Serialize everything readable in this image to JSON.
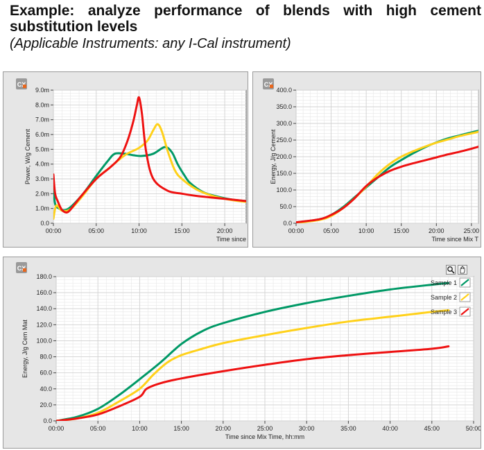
{
  "heading": {
    "title": "Example: analyze performance of blends with high cement substitution levels",
    "subtitle": "(Applicable Instruments: any I-Cal instrument)"
  },
  "colors": {
    "sample1": "#009966",
    "sample2": "#ffd11a",
    "sample3": "#ee1111",
    "panel_bg": "#e6e6e6",
    "plot_bg": "#ffffff",
    "grid": "#d2d2d2"
  },
  "chart_data": [
    {
      "type": "line",
      "title": "",
      "xlabel": "Time since",
      "ylabel": "Power, W/g Cement",
      "xlim": [
        0,
        1350
      ],
      "ylim": [
        0,
        9.0
      ],
      "xticks": [
        0,
        300,
        600,
        900,
        1200
      ],
      "xtick_labels": [
        "00:00",
        "05:00",
        "10:00",
        "15:00",
        "20:00"
      ],
      "yticks": [
        0,
        1,
        2,
        3,
        4,
        5,
        6,
        7,
        8,
        9
      ],
      "ytick_labels": [
        "0.0",
        "1.0m",
        "2.0m",
        "3.0m",
        "4.0m",
        "5.0m",
        "6.0m",
        "7.0m",
        "8.0m",
        "9.0m"
      ],
      "grid": true,
      "series": [
        {
          "color": "#009966",
          "x": [
            0,
            10,
            40,
            100,
            200,
            300,
            380,
            430,
            500,
            560,
            620,
            700,
            780,
            830,
            870,
            920,
            960,
            1050,
            1150,
            1250,
            1350
          ],
          "y": [
            3.0,
            1.4,
            1.0,
            0.95,
            1.9,
            3.2,
            4.2,
            4.7,
            4.7,
            4.6,
            4.55,
            4.7,
            5.15,
            4.8,
            4.0,
            3.2,
            2.7,
            2.1,
            1.8,
            1.6,
            1.5
          ]
        },
        {
          "color": "#ffd11a",
          "x": [
            0,
            20,
            60,
            120,
            200,
            300,
            400,
            500,
            600,
            660,
            700,
            730,
            760,
            800,
            850,
            900,
            1000,
            1100,
            1200,
            1300,
            1350
          ],
          "y": [
            0.3,
            1.2,
            0.85,
            0.95,
            1.8,
            3.0,
            3.8,
            4.6,
            5.1,
            5.6,
            6.3,
            6.7,
            6.2,
            4.9,
            3.6,
            3.0,
            2.3,
            1.9,
            1.65,
            1.5,
            1.45
          ]
        },
        {
          "color": "#ee1111",
          "x": [
            0,
            12,
            30,
            60,
            100,
            150,
            200,
            300,
            400,
            470,
            520,
            560,
            585,
            600,
            620,
            650,
            700,
            800,
            900,
            1000,
            1100,
            1200,
            1300,
            1350
          ],
          "y": [
            3.3,
            2.0,
            1.5,
            0.9,
            0.75,
            1.3,
            1.9,
            3.0,
            3.8,
            4.5,
            5.6,
            6.9,
            8.0,
            8.5,
            7.4,
            4.8,
            3.0,
            2.2,
            2.0,
            1.85,
            1.75,
            1.65,
            1.55,
            1.5
          ]
        }
      ]
    },
    {
      "type": "line",
      "title": "",
      "xlabel": "Time since Mix T",
      "ylabel": "Energy, J/g Cement",
      "xlim": [
        0,
        1560
      ],
      "ylim": [
        0,
        400
      ],
      "xticks": [
        0,
        300,
        600,
        900,
        1200,
        1500
      ],
      "xtick_labels": [
        "00:00",
        "05:00",
        "10:00",
        "15:00",
        "20:00",
        "25:00"
      ],
      "yticks": [
        0,
        50,
        100,
        150,
        200,
        250,
        300,
        350,
        400
      ],
      "ytick_labels": [
        "0.0",
        "50.0",
        "100.0",
        "150.0",
        "200.0",
        "250.0",
        "300.0",
        "350.0",
        "400.0"
      ],
      "grid": true,
      "series": [
        {
          "color": "#009966",
          "x": [
            0,
            200,
            300,
            400,
            500,
            600,
            700,
            800,
            900,
            1000,
            1100,
            1200,
            1300,
            1400,
            1500,
            1560
          ],
          "y": [
            2,
            12,
            25,
            48,
            78,
            108,
            138,
            168,
            190,
            210,
            228,
            243,
            255,
            264,
            273,
            278
          ]
        },
        {
          "color": "#ffd11a",
          "x": [
            0,
            200,
            300,
            400,
            500,
            600,
            700,
            800,
            900,
            1000,
            1100,
            1200,
            1300,
            1400,
            1500,
            1560
          ],
          "y": [
            1,
            10,
            22,
            45,
            75,
            110,
            148,
            178,
            200,
            216,
            230,
            242,
            252,
            262,
            270,
            275
          ]
        },
        {
          "color": "#ee1111",
          "x": [
            0,
            200,
            300,
            400,
            500,
            600,
            700,
            800,
            900,
            1000,
            1100,
            1200,
            1300,
            1400,
            1500,
            1560
          ],
          "y": [
            3,
            12,
            25,
            45,
            75,
            112,
            138,
            157,
            170,
            180,
            189,
            198,
            207,
            215,
            224,
            230
          ]
        }
      ]
    },
    {
      "type": "line",
      "title": "",
      "xlabel": "Time since Mix Time, hh:mm",
      "ylabel": "Energy, J/g Cem Mat",
      "xlim": [
        0,
        3000
      ],
      "ylim": [
        0,
        180
      ],
      "xticks": [
        0,
        300,
        600,
        900,
        1200,
        1500,
        1800,
        2100,
        2400,
        2700,
        3000
      ],
      "xtick_labels": [
        "00:00",
        "05:00",
        "10:00",
        "15:00",
        "20:00",
        "25:00",
        "30:00",
        "35:00",
        "40:00",
        "45:00",
        "50:00"
      ],
      "yticks": [
        0,
        20,
        40,
        60,
        80,
        100,
        120,
        140,
        160,
        180
      ],
      "ytick_labels": [
        "0.0",
        "20.0",
        "40.0",
        "60.0",
        "80.0",
        "100.0",
        "120.0",
        "140.0",
        "160.0",
        "180.0"
      ],
      "grid": true,
      "legend": {
        "placement": "top-right",
        "entries": [
          "Sample 1",
          "Sample 2",
          "Sample 3"
        ]
      },
      "series": [
        {
          "name": "Sample 1",
          "color": "#009966",
          "x": [
            0,
            150,
            300,
            450,
            600,
            750,
            900,
            1050,
            1200,
            1500,
            1800,
            2100,
            2400,
            2700,
            2820
          ],
          "y": [
            0,
            5,
            15,
            32,
            52,
            73,
            96,
            112,
            122,
            136,
            147,
            156,
            164,
            170,
            172
          ]
        },
        {
          "name": "Sample 2",
          "color": "#ffd11a",
          "x": [
            0,
            150,
            300,
            450,
            600,
            700,
            800,
            900,
            1050,
            1200,
            1500,
            1800,
            2100,
            2400,
            2700,
            2820
          ],
          "y": [
            0,
            3,
            10,
            24,
            40,
            58,
            73,
            82,
            90,
            97,
            107,
            116,
            124,
            130,
            136,
            138
          ]
        },
        {
          "name": "Sample 3",
          "color": "#ee1111",
          "x": [
            0,
            150,
            300,
            450,
            600,
            650,
            750,
            900,
            1200,
            1500,
            1800,
            2100,
            2400,
            2700,
            2820
          ],
          "y": [
            0,
            3,
            8,
            18,
            30,
            40,
            47,
            53,
            62,
            70,
            77,
            82,
            86,
            90,
            93
          ]
        }
      ]
    }
  ]
}
